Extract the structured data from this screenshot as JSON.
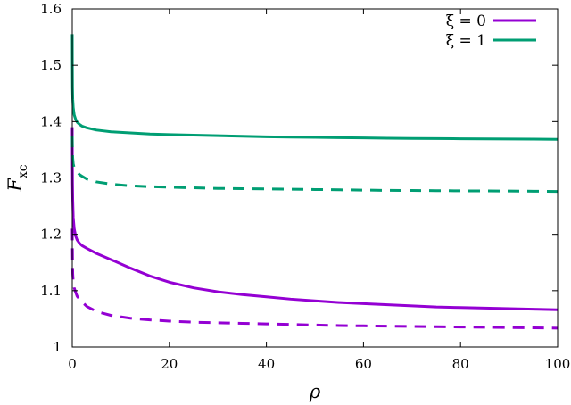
{
  "chart_data": {
    "type": "line",
    "title": "",
    "xlabel": "ρ",
    "ylabel": {
      "main": "F",
      "sub": "xc"
    },
    "xlim": [
      0,
      100
    ],
    "ylim": [
      1.0,
      1.6
    ],
    "x_ticks": [
      0,
      20,
      40,
      60,
      80,
      100
    ],
    "x_tick_labels": [
      "0",
      "20",
      "40",
      "60",
      "80",
      "100"
    ],
    "y_ticks": [
      1.0,
      1.1,
      1.2,
      1.3,
      1.4,
      1.5,
      1.6
    ],
    "y_tick_labels": [
      "1",
      "1.1",
      "1.2",
      "1.3",
      "1.4",
      "1.5",
      "1.6"
    ],
    "grid": false,
    "legend": {
      "position": "top-right",
      "entries": [
        {
          "label": "ξ = 0",
          "color": "#9400d3"
        },
        {
          "label": "ξ = 1",
          "color": "#009e73"
        }
      ]
    },
    "series": [
      {
        "name": "ξ = 0",
        "color": "#9400d3",
        "dash": "solid",
        "x": [
          0.0,
          0.02,
          0.05,
          0.1,
          0.2,
          0.4,
          0.7,
          1,
          1.5,
          2,
          3,
          5,
          8,
          12,
          16,
          20,
          25,
          30,
          35,
          40,
          45,
          50,
          55,
          60,
          65,
          70,
          75,
          80,
          85,
          90,
          95,
          100
        ],
        "y": [
          1.39,
          1.33,
          1.29,
          1.26,
          1.23,
          1.21,
          1.197,
          1.19,
          1.184,
          1.18,
          1.175,
          1.166,
          1.155,
          1.14,
          1.126,
          1.115,
          1.105,
          1.098,
          1.093,
          1.089,
          1.085,
          1.082,
          1.079,
          1.077,
          1.075,
          1.073,
          1.071,
          1.07,
          1.069,
          1.068,
          1.067,
          1.066
        ]
      },
      {
        "name": "ξ = 1",
        "color": "#009e73",
        "dash": "solid",
        "x": [
          0.0,
          0.02,
          0.05,
          0.1,
          0.2,
          0.4,
          0.7,
          1,
          1.5,
          2,
          3,
          5,
          8,
          12,
          16,
          20,
          25,
          30,
          35,
          40,
          45,
          50,
          55,
          60,
          65,
          70,
          75,
          80,
          85,
          90,
          95,
          100
        ],
        "y": [
          1.555,
          1.5,
          1.46,
          1.44,
          1.425,
          1.412,
          1.404,
          1.399,
          1.395,
          1.392,
          1.389,
          1.385,
          1.382,
          1.38,
          1.378,
          1.377,
          1.376,
          1.375,
          1.374,
          1.373,
          1.3725,
          1.372,
          1.3715,
          1.371,
          1.3705,
          1.37,
          1.3698,
          1.3695,
          1.3692,
          1.369,
          1.3688,
          1.3685
        ]
      },
      {
        "name": "",
        "color": "#9400d3",
        "dash": "dashed",
        "x": [
          0.0,
          0.05,
          0.1,
          0.2,
          0.4,
          0.7,
          1,
          1.5,
          2,
          3,
          5,
          8,
          12,
          16,
          20,
          25,
          30,
          35,
          40,
          45,
          50,
          55,
          60,
          65,
          70,
          75,
          80,
          85,
          90,
          95,
          100
        ],
        "y": [
          1.21,
          1.16,
          1.13,
          1.115,
          1.105,
          1.097,
          1.09,
          1.085,
          1.08,
          1.072,
          1.063,
          1.056,
          1.051,
          1.048,
          1.046,
          1.044,
          1.043,
          1.042,
          1.041,
          1.04,
          1.039,
          1.038,
          1.0375,
          1.037,
          1.0365,
          1.036,
          1.0355,
          1.035,
          1.0345,
          1.034,
          1.0335
        ]
      },
      {
        "name": "",
        "color": "#009e73",
        "dash": "dashed",
        "x": [
          0.0,
          0.05,
          0.1,
          0.2,
          0.4,
          0.7,
          1,
          1.5,
          2,
          3,
          5,
          8,
          12,
          16,
          20,
          25,
          30,
          35,
          40,
          45,
          50,
          55,
          60,
          65,
          70,
          75,
          80,
          85,
          90,
          95,
          100
        ],
        "y": [
          1.375,
          1.345,
          1.335,
          1.325,
          1.318,
          1.313,
          1.31,
          1.306,
          1.303,
          1.298,
          1.293,
          1.289,
          1.286,
          1.2845,
          1.2835,
          1.2825,
          1.2815,
          1.281,
          1.2805,
          1.28,
          1.2795,
          1.279,
          1.2785,
          1.278,
          1.2778,
          1.2775,
          1.2772,
          1.277,
          1.2768,
          1.2765,
          1.276
        ]
      }
    ]
  }
}
